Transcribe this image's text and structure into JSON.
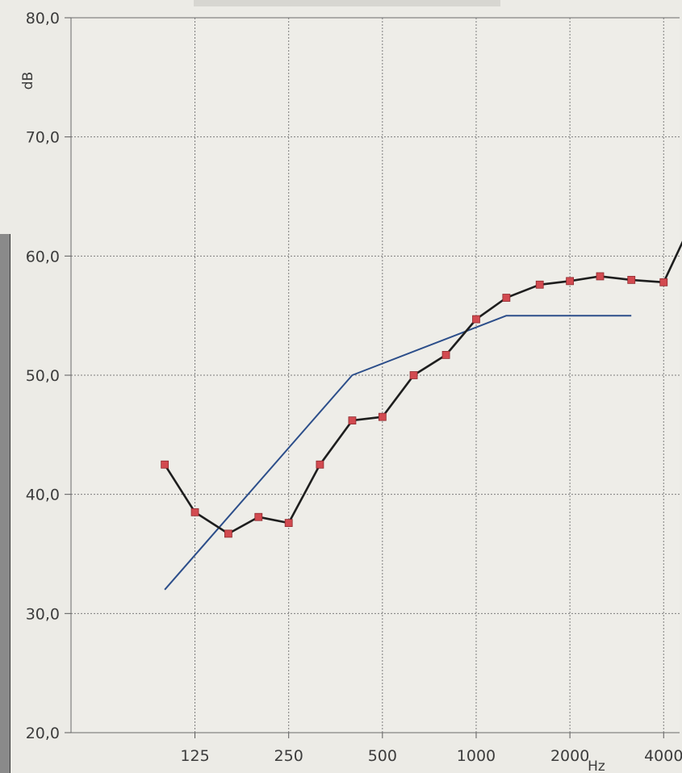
{
  "chart_data": {
    "type": "line",
    "xlabel": "Hz",
    "ylabel": "dB",
    "ylim": [
      20,
      80
    ],
    "yticks": [
      "80,0",
      "70,0",
      "60,0",
      "50,0",
      "40,0",
      "30,0",
      "20,0"
    ],
    "ytick_values": [
      80,
      70,
      60,
      50,
      40,
      30,
      20
    ],
    "xticks": [
      "125",
      "250",
      "500",
      "1000",
      "2000",
      "4000"
    ],
    "xtick_values": [
      125,
      250,
      500,
      1000,
      2000,
      4000
    ],
    "x_scale": "log",
    "xlim": [
      50,
      4500
    ],
    "grid": true,
    "series": [
      {
        "color": "#1e1e1e",
        "marker_color": "#d24a50",
        "markers": true,
        "x": [
          100,
          125,
          160,
          200,
          250,
          315,
          400,
          500,
          630,
          800,
          1000,
          1250,
          1600,
          2000,
          2500,
          3150,
          4000,
          5000
        ],
        "y": [
          42.5,
          38.5,
          36.7,
          38.1,
          37.6,
          42.5,
          46.2,
          46.5,
          50.0,
          51.7,
          54.7,
          56.5,
          57.6,
          57.9,
          58.3,
          58.0,
          57.8,
          63.2
        ]
      },
      {
        "color": "#2c4e8a",
        "markers": false,
        "x": [
          100,
          400,
          1250,
          3150
        ],
        "y": [
          32,
          50,
          55,
          55
        ]
      }
    ]
  }
}
